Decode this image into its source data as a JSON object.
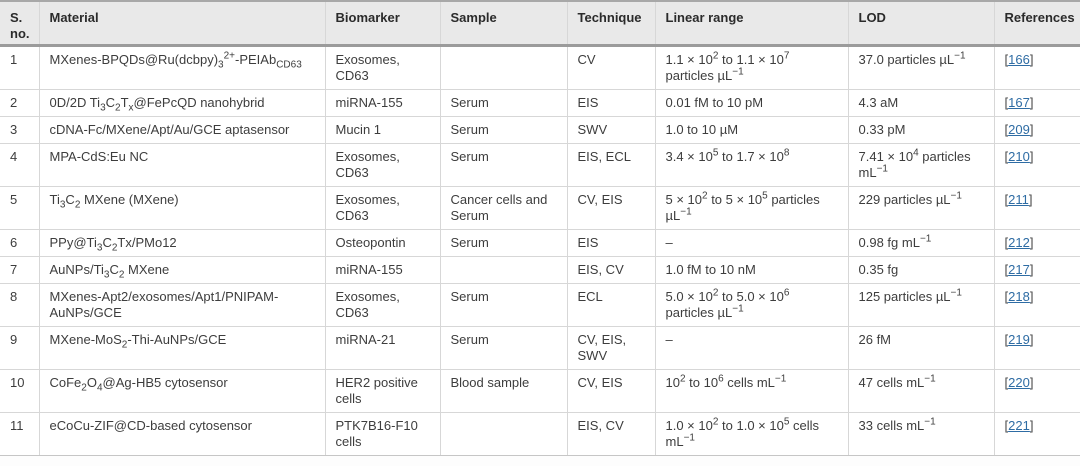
{
  "colors": {
    "link": "#2e6ca4",
    "header_bg": "#e9e9e9",
    "header_text": "#2b2b2b",
    "body_text": "#3d3d3d",
    "grid_line": "#d7d7d7",
    "thick_line": "#9b9b9b"
  },
  "table": {
    "columns": [
      {
        "key": "sno",
        "label": "S. no."
      },
      {
        "key": "material",
        "label": "Material"
      },
      {
        "key": "biomarker",
        "label": "Biomarker"
      },
      {
        "key": "sample",
        "label": "Sample"
      },
      {
        "key": "technique",
        "label": "Technique"
      },
      {
        "key": "linear_range",
        "label": "Linear range"
      },
      {
        "key": "lod",
        "label": "LOD"
      },
      {
        "key": "references",
        "label": "References"
      }
    ],
    "reference_brackets": {
      "open": "[",
      "close": "]"
    },
    "rows": [
      {
        "sno": "1",
        "material": "MXenes-BPQDs@Ru(dcbpy)~3~^2+^-PEIAb~CD63~",
        "biomarker": "Exosomes, CD63",
        "sample": "",
        "technique": "CV",
        "linear_range": "1.1 × 10^2^ to 1.1 × 10^7^ particles µL^−1^",
        "lod": "37.0 particles µL^−1^",
        "reference": "166"
      },
      {
        "sno": "2",
        "material": "0D/2D Ti~3~C~2~T~x~@FePcQD nanohybrid",
        "biomarker": "miRNA-155",
        "sample": "Serum",
        "technique": "EIS",
        "linear_range": "0.01 fM to 10 pM",
        "lod": "4.3 aM",
        "reference": "167"
      },
      {
        "sno": "3",
        "material": "cDNA-Fc/MXene/Apt/Au/GCE aptasensor",
        "biomarker": "Mucin 1",
        "sample": "Serum",
        "technique": "SWV",
        "linear_range": "1.0 to 10 µM",
        "lod": "0.33 pM",
        "reference": "209"
      },
      {
        "sno": "4",
        "material": "MPA-CdS:Eu NC",
        "biomarker": "Exosomes, CD63",
        "sample": "Serum",
        "technique": "EIS, ECL",
        "linear_range": "3.4 × 10^5^ to 1.7 × 10^8^",
        "lod": "7.41 × 10^4^ particles mL^−1^",
        "reference": "210"
      },
      {
        "sno": "5",
        "material": "Ti~3~C~2~ MXene (MXene)",
        "biomarker": "Exosomes, CD63",
        "sample": "Cancer cells and Serum",
        "technique": "CV, EIS",
        "linear_range": "5 × 10^2^ to 5 × 10^5^ particles µL^−1^",
        "lod": "229 particles µL^−1^",
        "reference": "211"
      },
      {
        "sno": "6",
        "material": "PPy@Ti~3~C~2~Tx/PMo12",
        "biomarker": "Osteopontin",
        "sample": "Serum",
        "technique": "EIS",
        "linear_range": "–",
        "lod": "0.98 fg mL^−1^",
        "reference": "212"
      },
      {
        "sno": "7",
        "material": "AuNPs/Ti~3~C~2~ MXene",
        "biomarker": "miRNA-155",
        "sample": "",
        "technique": "EIS, CV",
        "linear_range": "1.0 fM to 10 nM",
        "lod": "0.35 fg",
        "reference": "217"
      },
      {
        "sno": "8",
        "material": "MXenes-Apt2/exosomes/Apt1/PNIPAM-AuNPs/GCE",
        "biomarker": "Exosomes, CD63",
        "sample": "Serum",
        "technique": "ECL",
        "linear_range": "5.0 × 10^2^ to 5.0 × 10^6^ particles µL^−1^",
        "lod": "125 particles µL^−1^",
        "reference": "218"
      },
      {
        "sno": "9",
        "material": "MXene-MoS~2~-Thi-AuNPs/GCE",
        "biomarker": "miRNA-21",
        "sample": "Serum",
        "technique": "CV, EIS, SWV",
        "linear_range": "–",
        "lod": "26 fM",
        "reference": "219"
      },
      {
        "sno": "10",
        "material": "CoFe~2~O~4~@Ag-HB5 cytosensor",
        "biomarker": "HER2 positive cells",
        "sample": "Blood sample",
        "technique": "CV, EIS",
        "linear_range": "10^2^ to 10^6^ cells mL^−1^",
        "lod": "47 cells mL^−1^",
        "reference": "220"
      },
      {
        "sno": "11",
        "material": "eCoCu-ZIF@CD-based cytosensor",
        "biomarker": "PTK7B16-F10 cells",
        "sample": "",
        "technique": "EIS, CV",
        "linear_range": "1.0 × 10^2^ to 1.0 × 10^5^ cells mL^−1^",
        "lod": "33 cells mL^−1^",
        "reference": "221"
      }
    ]
  }
}
